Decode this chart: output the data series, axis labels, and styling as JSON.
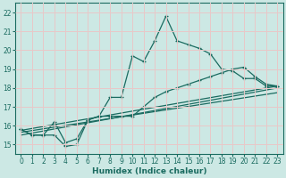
{
  "xlabel": "Humidex (Indice chaleur)",
  "xlim": [
    -0.5,
    23.5
  ],
  "ylim": [
    14.5,
    22.5
  ],
  "yticks": [
    15,
    16,
    17,
    18,
    19,
    20,
    21,
    22
  ],
  "xticks": [
    0,
    1,
    2,
    3,
    4,
    5,
    6,
    7,
    8,
    9,
    10,
    11,
    12,
    13,
    14,
    15,
    16,
    17,
    18,
    19,
    20,
    21,
    22,
    23
  ],
  "bg_color": "#cce8e4",
  "line_color": "#1a6b60",
  "grid_color": "#e8c8c8",
  "line1_y": [
    15.8,
    15.5,
    15.5,
    15.5,
    14.9,
    15.0,
    16.3,
    16.5,
    17.5,
    17.5,
    19.7,
    19.4,
    20.5,
    21.8,
    20.5,
    20.3,
    20.1,
    19.8,
    19.0,
    18.9,
    18.5,
    18.5,
    18.1,
    18.1
  ],
  "line2_y": [
    15.8,
    15.5,
    15.5,
    16.2,
    15.1,
    15.3,
    16.3,
    16.5,
    16.5,
    16.5,
    16.5,
    17.0,
    17.5,
    17.8,
    18.0,
    18.2,
    18.4,
    18.6,
    18.8,
    19.0,
    19.1,
    18.6,
    18.2,
    18.1
  ],
  "trend1": [
    15.65,
    17.75
  ],
  "trend2": [
    15.75,
    18.1
  ],
  "trend3": [
    15.5,
    18.0
  ]
}
